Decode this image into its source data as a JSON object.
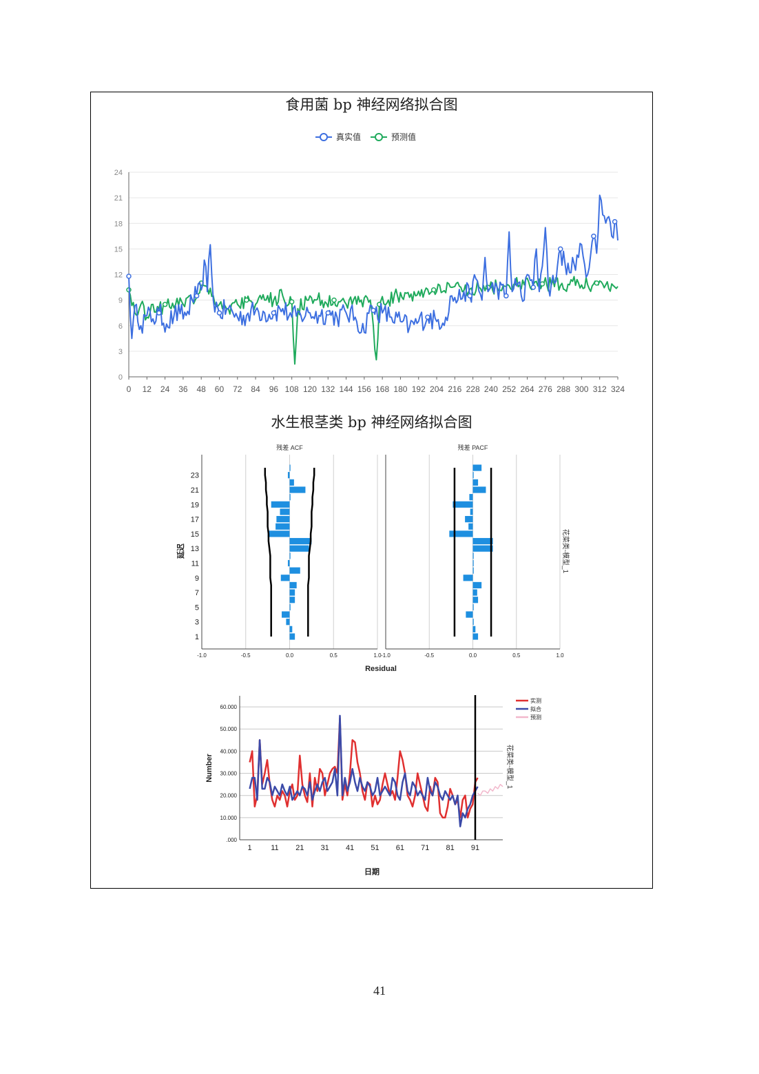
{
  "page_number": "41",
  "chart_data": [
    {
      "type": "line",
      "title": "食用菌 bp 神经网络拟合图",
      "legend": "top-center",
      "grid": true,
      "x_ticks": [
        "0",
        "12",
        "24",
        "36",
        "48",
        "60",
        "72",
        "84",
        "96",
        "108",
        "120",
        "132",
        "144",
        "156",
        "168",
        "180",
        "192",
        "204",
        "216",
        "228",
        "240",
        "252",
        "264",
        "276",
        "288",
        "300",
        "312",
        "324"
      ],
      "y_ticks": [
        "0",
        "3",
        "6",
        "9",
        "12",
        "15",
        "18",
        "21",
        "24"
      ],
      "xlim": [
        0,
        324
      ],
      "ylim": [
        0,
        24
      ],
      "series": [
        {
          "name": "真实值",
          "color": "#3d6fe0",
          "knots": [
            [
              0,
              11.8
            ],
            [
              2,
              4.5
            ],
            [
              5,
              8.5
            ],
            [
              8,
              6.0
            ],
            [
              12,
              7.2
            ],
            [
              16,
              6.8
            ],
            [
              20,
              7.5
            ],
            [
              25,
              6.2
            ],
            [
              30,
              7.2
            ],
            [
              34,
              7.4
            ],
            [
              38,
              7.2
            ],
            [
              42,
              9.0
            ],
            [
              45,
              9.5
            ],
            [
              48,
              10.2
            ],
            [
              50,
              13.7
            ],
            [
              52,
              10.0
            ],
            [
              54,
              15.5
            ],
            [
              56,
              9.0
            ],
            [
              60,
              7.5
            ],
            [
              66,
              8.0
            ],
            [
              72,
              7.0
            ],
            [
              78,
              7.2
            ],
            [
              84,
              7.8
            ],
            [
              90,
              7.5
            ],
            [
              96,
              7.5
            ],
            [
              102,
              8.0
            ],
            [
              108,
              7.0
            ],
            [
              114,
              7.2
            ],
            [
              120,
              7.5
            ],
            [
              126,
              7.2
            ],
            [
              132,
              7.5
            ],
            [
              138,
              7.0
            ],
            [
              144,
              7.5
            ],
            [
              150,
              7.0
            ],
            [
              156,
              5.2
            ],
            [
              158,
              7.5
            ],
            [
              162,
              7.8
            ],
            [
              168,
              7.5
            ],
            [
              174,
              7.0
            ],
            [
              180,
              6.5
            ],
            [
              186,
              5.8
            ],
            [
              192,
              6.5
            ],
            [
              198,
              7.0
            ],
            [
              204,
              6.5
            ],
            [
              210,
              7.0
            ],
            [
              214,
              9.5
            ],
            [
              218,
              9.0
            ],
            [
              222,
              10.0
            ],
            [
              226,
              9.5
            ],
            [
              230,
              11.5
            ],
            [
              234,
              9.0
            ],
            [
              236,
              14.0
            ],
            [
              238,
              10.0
            ],
            [
              244,
              10.5
            ],
            [
              250,
              9.5
            ],
            [
              252,
              17.0
            ],
            [
              254,
              10.0
            ],
            [
              258,
              11.0
            ],
            [
              262,
              9.0
            ],
            [
              264,
              12.0
            ],
            [
              268,
              10.5
            ],
            [
              270,
              15.0
            ],
            [
              272,
              10.0
            ],
            [
              276,
              17.5
            ],
            [
              278,
              10.5
            ],
            [
              282,
              11.0
            ],
            [
              286,
              15.0
            ],
            [
              290,
              12.0
            ],
            [
              294,
              14.0
            ],
            [
              296,
              12.5
            ],
            [
              300,
              15.5
            ],
            [
              304,
              12.0
            ],
            [
              308,
              16.5
            ],
            [
              310,
              14.5
            ],
            [
              312,
              21.3
            ],
            [
              314,
              19.0
            ],
            [
              318,
              18.8
            ],
            [
              320,
              16.5
            ],
            [
              322,
              18.2
            ],
            [
              324,
              16.0
            ]
          ]
        },
        {
          "name": "预测值",
          "color": "#1faa5c",
          "knots": [
            [
              0,
              10.2
            ],
            [
              4,
              7.5
            ],
            [
              8,
              8.5
            ],
            [
              12,
              7.0
            ],
            [
              16,
              8.5
            ],
            [
              20,
              8.0
            ],
            [
              24,
              8.5
            ],
            [
              28,
              8.0
            ],
            [
              32,
              9.2
            ],
            [
              36,
              8.5
            ],
            [
              40,
              9.5
            ],
            [
              44,
              9.0
            ],
            [
              48,
              11.0
            ],
            [
              52,
              10.5
            ],
            [
              56,
              9.5
            ],
            [
              60,
              8.5
            ],
            [
              66,
              8.0
            ],
            [
              72,
              8.5
            ],
            [
              78,
              9.0
            ],
            [
              84,
              8.5
            ],
            [
              90,
              9.0
            ],
            [
              96,
              9.0
            ],
            [
              102,
              9.5
            ],
            [
              106,
              8.5
            ],
            [
              108,
              8.8
            ],
            [
              110,
              1.5
            ],
            [
              112,
              8.0
            ],
            [
              118,
              9.0
            ],
            [
              124,
              9.0
            ],
            [
              130,
              8.8
            ],
            [
              136,
              9.0
            ],
            [
              142,
              9.2
            ],
            [
              148,
              8.5
            ],
            [
              154,
              9.0
            ],
            [
              160,
              9.0
            ],
            [
              164,
              2.0
            ],
            [
              166,
              8.5
            ],
            [
              172,
              9.0
            ],
            [
              178,
              9.5
            ],
            [
              184,
              9.8
            ],
            [
              190,
              9.5
            ],
            [
              196,
              10.0
            ],
            [
              202,
              10.2
            ],
            [
              208,
              10.0
            ],
            [
              214,
              10.5
            ],
            [
              220,
              10.5
            ],
            [
              226,
              10.3
            ],
            [
              232,
              10.5
            ],
            [
              238,
              10.5
            ],
            [
              244,
              10.5
            ],
            [
              250,
              10.6
            ],
            [
              256,
              10.8
            ],
            [
              262,
              10.8
            ],
            [
              268,
              10.8
            ],
            [
              274,
              10.9
            ],
            [
              280,
              10.8
            ],
            [
              286,
              10.7
            ],
            [
              292,
              10.8
            ],
            [
              298,
              11.0
            ],
            [
              304,
              10.8
            ],
            [
              310,
              11.0
            ],
            [
              316,
              10.8
            ],
            [
              320,
              10.9
            ],
            [
              324,
              10.6
            ]
          ]
        }
      ]
    },
    {
      "type": "bar",
      "title": "水生根茎类 bp 神经网络拟合图",
      "panels": [
        {
          "title": "残差 ACF",
          "lags": [
            1,
            2,
            3,
            4,
            5,
            6,
            7,
            8,
            9,
            10,
            11,
            12,
            13,
            14,
            15,
            16,
            17,
            18,
            19,
            20,
            21,
            22,
            23,
            24
          ],
          "values": [
            0.06,
            0.03,
            -0.04,
            -0.09,
            0.01,
            0.06,
            0.06,
            0.08,
            -0.1,
            0.12,
            -0.02,
            0.0,
            0.22,
            0.25,
            -0.25,
            -0.16,
            -0.15,
            -0.11,
            -0.21,
            0.01,
            0.18,
            0.05,
            -0.02,
            0.0
          ],
          "ci_lower": [
            -0.21,
            -0.21,
            -0.21,
            -0.21,
            -0.21,
            -0.21,
            -0.21,
            -0.21,
            -0.22,
            -0.22,
            -0.22,
            -0.22,
            -0.23,
            -0.24,
            -0.24,
            -0.25,
            -0.25,
            -0.25,
            -0.26,
            -0.26,
            -0.27,
            -0.27,
            -0.28,
            -0.28
          ],
          "ci_upper": [
            0.21,
            0.21,
            0.21,
            0.21,
            0.21,
            0.21,
            0.21,
            0.21,
            0.22,
            0.22,
            0.22,
            0.22,
            0.23,
            0.24,
            0.24,
            0.25,
            0.25,
            0.25,
            0.26,
            0.26,
            0.27,
            0.27,
            0.28,
            0.28
          ],
          "x_ticks": [
            "-1.0",
            "-0.5",
            "0.0",
            "0.5",
            "1.0"
          ],
          "xlim": [
            -1,
            1
          ]
        },
        {
          "title": "残差 PACF",
          "lags": [
            1,
            2,
            3,
            4,
            5,
            6,
            7,
            8,
            9,
            10,
            11,
            12,
            13,
            14,
            15,
            16,
            17,
            18,
            19,
            20,
            21,
            22,
            23,
            24
          ],
          "values": [
            0.06,
            0.03,
            0.01,
            -0.08,
            0.0,
            0.06,
            0.05,
            0.1,
            -0.11,
            0.01,
            0.0,
            0.0,
            0.23,
            0.23,
            -0.27,
            -0.05,
            -0.09,
            -0.03,
            -0.23,
            -0.04,
            0.15,
            0.06,
            0.0,
            0.1
          ],
          "ci_value": 0.21,
          "x_ticks": [
            "-1.0",
            "-0.5",
            "0.0",
            "0.5",
            "1.0"
          ],
          "xlim": [
            -1,
            1
          ]
        }
      ],
      "y_ticks": [
        "1",
        "3",
        "5",
        "7",
        "9",
        "11",
        "13",
        "15",
        "17",
        "19",
        "21",
        "23"
      ],
      "ylabel": "延迟",
      "xlabel": "Residual",
      "side_label": "花菜类-模型_1"
    },
    {
      "type": "line",
      "xlabel": "日期",
      "ylabel": "Number",
      "x_ticks": [
        "1",
        "11",
        "21",
        "31",
        "41",
        "51",
        "61",
        "71",
        "81",
        "91"
      ],
      "y_ticks": [
        ".000",
        "10.000",
        "20.000",
        "30.000",
        "40.000",
        "50.000",
        "60.000"
      ],
      "xlim": [
        -3,
        102
      ],
      "ylim": [
        0,
        65
      ],
      "forecast_start": 91,
      "side_label": "花菜类-模型_1",
      "legend": "top-right",
      "series": [
        {
          "name": "实测",
          "color": "#e03030",
          "x_start": 1,
          "values": [
            35,
            40,
            15,
            20,
            45,
            25,
            30,
            36,
            25,
            18,
            15,
            20,
            18,
            22,
            20,
            15,
            22,
            25,
            18,
            20,
            38,
            25,
            20,
            17,
            30,
            15,
            28,
            22,
            32,
            30,
            20,
            25,
            30,
            32,
            33,
            30,
            55,
            18,
            25,
            20,
            30,
            45,
            44,
            35,
            30,
            22,
            18,
            26,
            25,
            15,
            20,
            16,
            18,
            25,
            30,
            25,
            20,
            22,
            18,
            28,
            40,
            36,
            30,
            20,
            18,
            15,
            20,
            30,
            25,
            20,
            15,
            13,
            24,
            20,
            28,
            26,
            12,
            10,
            10,
            15,
            23,
            20,
            16,
            18,
            10,
            18,
            20,
            10,
            14,
            16,
            26,
            28
          ]
        },
        {
          "name": "拟合",
          "color": "#3b4aa8",
          "x_start": 1,
          "values": [
            23,
            28,
            28,
            18,
            45,
            23,
            23,
            28,
            26,
            20,
            24,
            22,
            20,
            25,
            22,
            20,
            24,
            18,
            20,
            22,
            20,
            24,
            23,
            20,
            26,
            18,
            22,
            25,
            22,
            26,
            28,
            22,
            24,
            26,
            32,
            20,
            56,
            20,
            28,
            22,
            26,
            32,
            26,
            22,
            28,
            24,
            22,
            26,
            24,
            20,
            22,
            28,
            20,
            22,
            24,
            22,
            20,
            28,
            26,
            20,
            18,
            26,
            30,
            22,
            20,
            26,
            24,
            20,
            22,
            20,
            18,
            28,
            22,
            20,
            26,
            24,
            20,
            18,
            22,
            20,
            18,
            20,
            16,
            20,
            6,
            12,
            10,
            14,
            16,
            20,
            22,
            24
          ]
        },
        {
          "name": "预测",
          "color": "#f2b8cc",
          "x_start": 92,
          "values": [
            21,
            20,
            22,
            22,
            21,
            23,
            22,
            24,
            23,
            25,
            24
          ]
        }
      ]
    }
  ]
}
